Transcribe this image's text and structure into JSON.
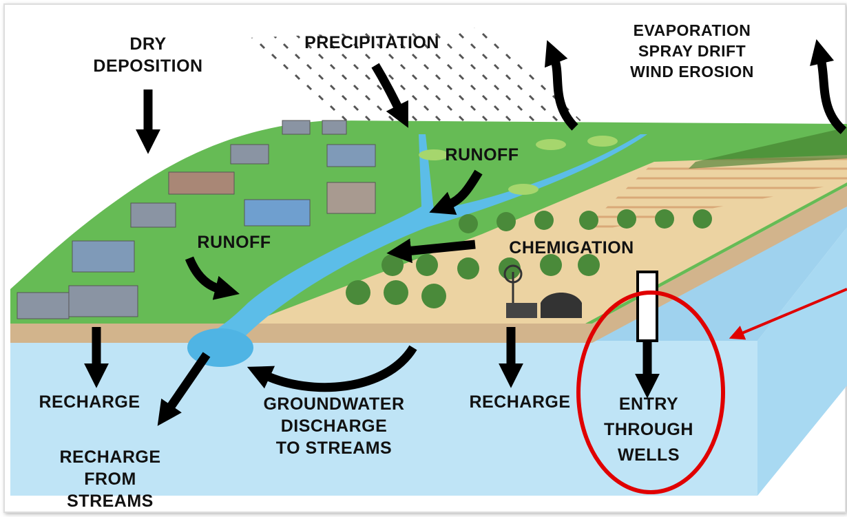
{
  "labels": {
    "dry_deposition": [
      "DRY",
      "DEPOSITION"
    ],
    "precipitation": [
      "PRECIPITATION"
    ],
    "evaporation": [
      "EVAPORATION",
      "SPRAY DRIFT",
      "WIND EROSION"
    ],
    "runoff_top": [
      "RUNOFF"
    ],
    "runoff_left": [
      "RUNOFF"
    ],
    "chemigation": [
      "CHEMIGATION"
    ],
    "recharge_left": [
      "RECHARGE"
    ],
    "groundwater_discharge": [
      "GROUNDWATER",
      "DISCHARGE",
      "TO STREAMS"
    ],
    "recharge_right": [
      "RECHARGE"
    ],
    "recharge_from_streams": [
      "RECHARGE",
      "FROM",
      "STREAMS"
    ],
    "entry_through_wells": [
      "ENTRY",
      "THROUGH",
      "WELLS"
    ]
  }
}
